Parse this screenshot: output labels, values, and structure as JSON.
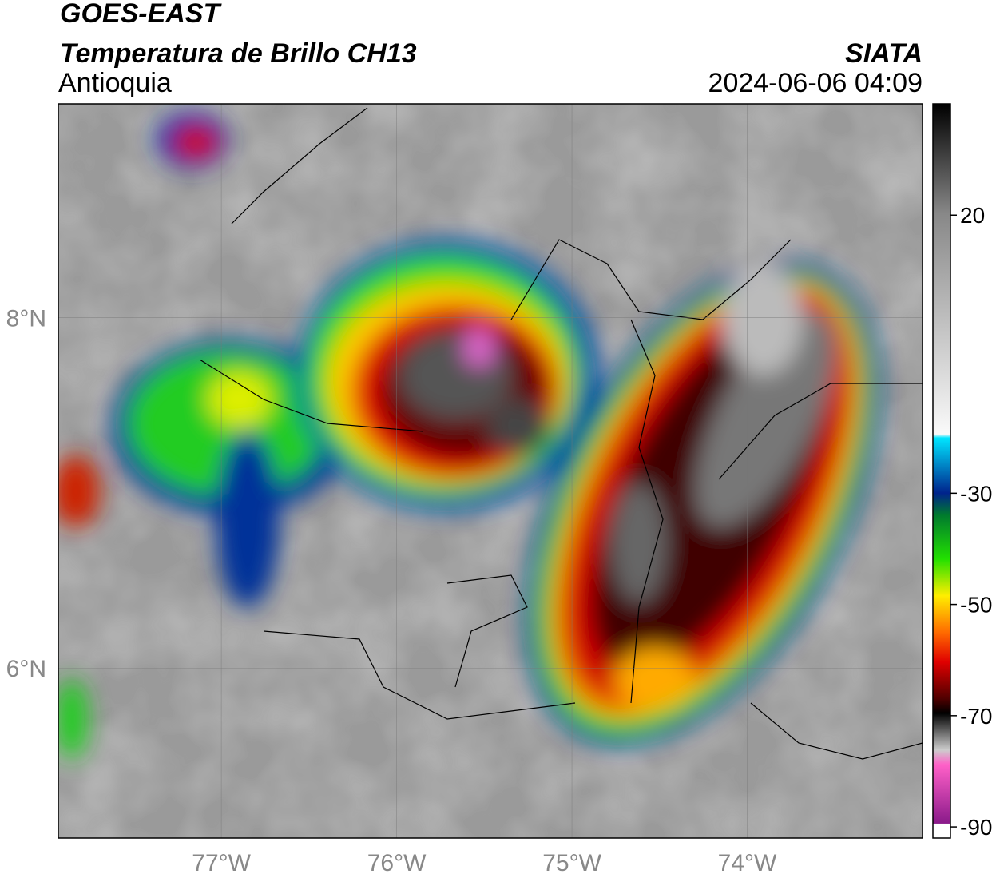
{
  "map": {
    "title": "GOES-EAST",
    "subtitle": "Temperatura de Brillo CH13",
    "region": "Antioquia",
    "source": "SIATA",
    "timestamp": "2024-06-06 04:09",
    "xlim": [
      -77.93,
      -73.0
    ],
    "ylim": [
      5.03,
      9.22
    ],
    "xticks": [
      {
        "value": -77,
        "label": "77°W"
      },
      {
        "value": -76,
        "label": "76°W"
      },
      {
        "value": -75,
        "label": "75°W"
      },
      {
        "value": -74,
        "label": "74°W"
      }
    ],
    "yticks": [
      {
        "value": 8,
        "label": "8°N"
      },
      {
        "value": 6,
        "label": "6°N"
      }
    ],
    "grid": true,
    "colorbar": {
      "lim": [
        -92,
        40
      ],
      "ticks": [
        20,
        -30,
        -50,
        -70,
        -90
      ]
    }
  }
}
